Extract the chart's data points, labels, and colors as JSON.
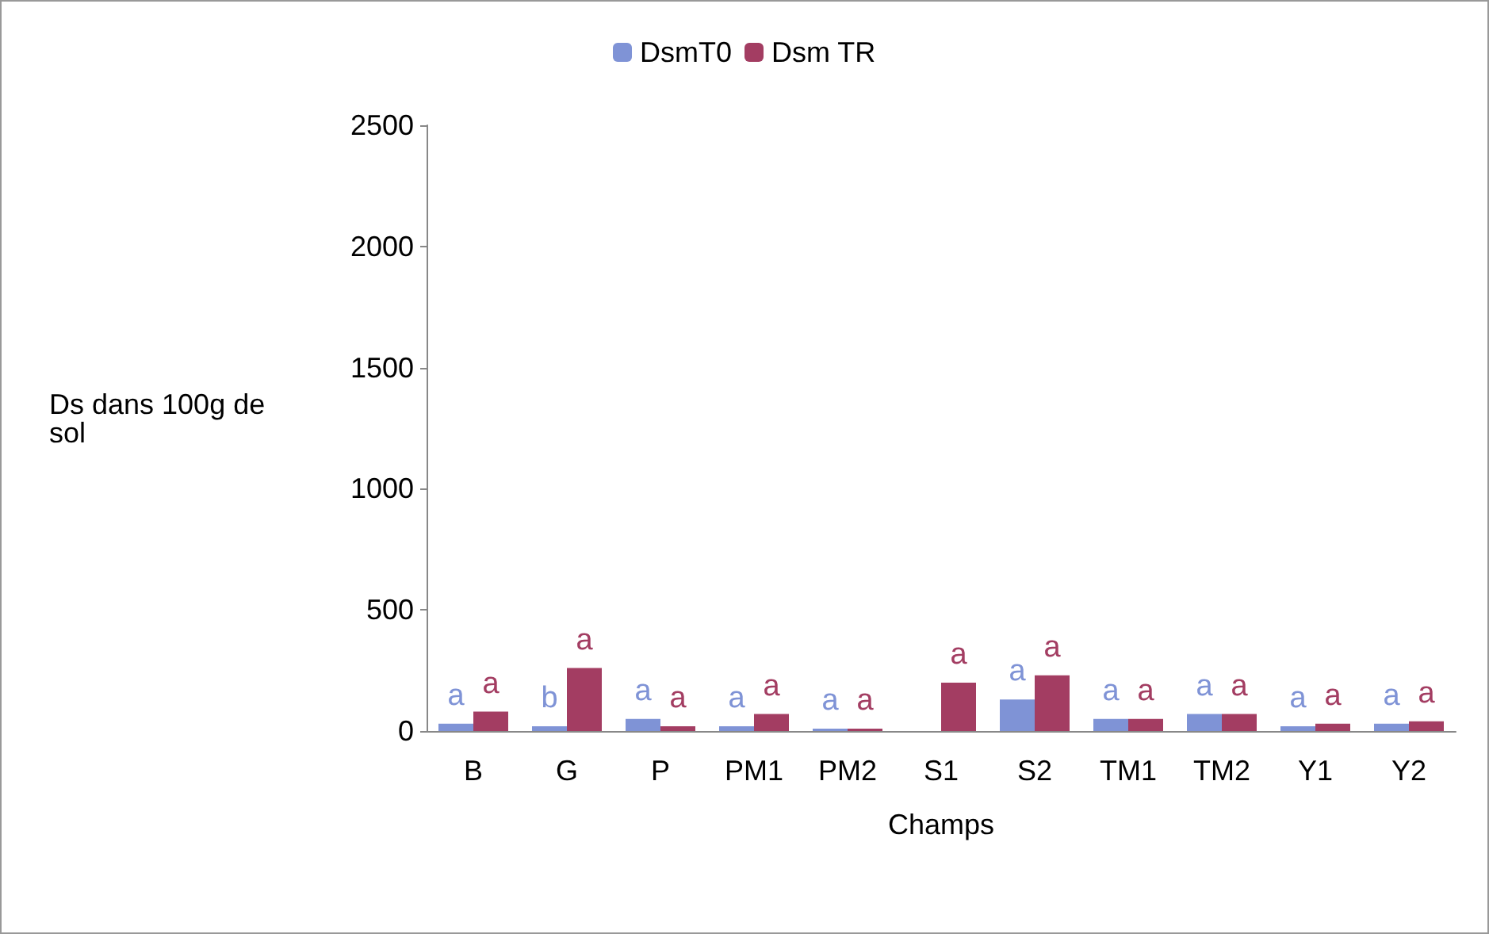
{
  "chart_data": {
    "type": "bar",
    "xlabel": "Champs",
    "ylabel": "Ds dans 100g de sol",
    "categories": [
      "B",
      "G",
      "P",
      "PM1",
      "PM2",
      "S1",
      "S2",
      "TM1",
      "TM2",
      "Y1",
      "Y2"
    ],
    "series": [
      {
        "name": "DsmT0",
        "color": "#7f93d6",
        "values": [
          30,
          20,
          50,
          20,
          10,
          0,
          130,
          50,
          70,
          20,
          30
        ],
        "value_labels": [
          "a",
          "b",
          "a",
          "a",
          "a",
          null,
          "a",
          "a",
          "a",
          "a",
          "a"
        ]
      },
      {
        "name": "Dsm TR",
        "color": "#a33d62",
        "values": [
          80,
          260,
          20,
          70,
          10,
          200,
          230,
          50,
          70,
          30,
          40
        ],
        "value_labels": [
          "a",
          "a",
          "a",
          "a",
          "a",
          "a",
          "a",
          "a",
          "a",
          "a",
          "a"
        ]
      }
    ],
    "ylim": [
      0,
      2500
    ],
    "yticks": [
      0,
      500,
      1000,
      1500,
      2000,
      2500
    ],
    "grid": false,
    "legend": "top"
  }
}
